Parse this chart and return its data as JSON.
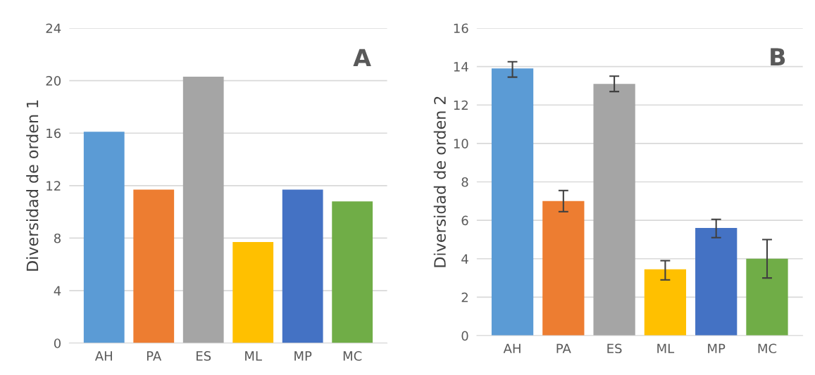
{
  "chart_data": [
    {
      "type": "bar",
      "ylabel": "Diversidad de orden 1",
      "annotations": [
        "A"
      ],
      "categories": [
        "AH",
        "PA",
        "ES",
        "ML",
        "MP",
        "MC"
      ],
      "values": [
        16.1,
        11.7,
        20.3,
        7.7,
        11.7,
        10.8
      ],
      "colors": [
        "#5b9bd5",
        "#ed7d31",
        "#a5a5a5",
        "#ffc000",
        "#4472c4",
        "#70ad47"
      ],
      "ylim": [
        0,
        24
      ],
      "yticks": [
        0,
        4,
        8,
        12,
        16,
        20,
        24
      ],
      "grid": "y"
    },
    {
      "type": "bar",
      "ylabel": "Diversidad de orden 2",
      "annotations": [
        "B"
      ],
      "categories": [
        "AH",
        "PA",
        "ES",
        "ML",
        "MP",
        "MC"
      ],
      "values": [
        13.9,
        7.0,
        13.1,
        3.45,
        5.6,
        4.0
      ],
      "errors": [
        [
          13.45,
          14.25
        ],
        [
          6.45,
          7.55
        ],
        [
          12.7,
          13.5
        ],
        [
          2.9,
          3.9
        ],
        [
          5.1,
          6.05
        ],
        [
          3.0,
          5.0
        ]
      ],
      "colors": [
        "#5b9bd5",
        "#ed7d31",
        "#a5a5a5",
        "#ffc000",
        "#4472c4",
        "#70ad47"
      ],
      "ylim": [
        0,
        16
      ],
      "yticks": [
        0,
        2,
        4,
        6,
        8,
        10,
        12,
        14,
        16
      ],
      "grid": "y"
    }
  ]
}
